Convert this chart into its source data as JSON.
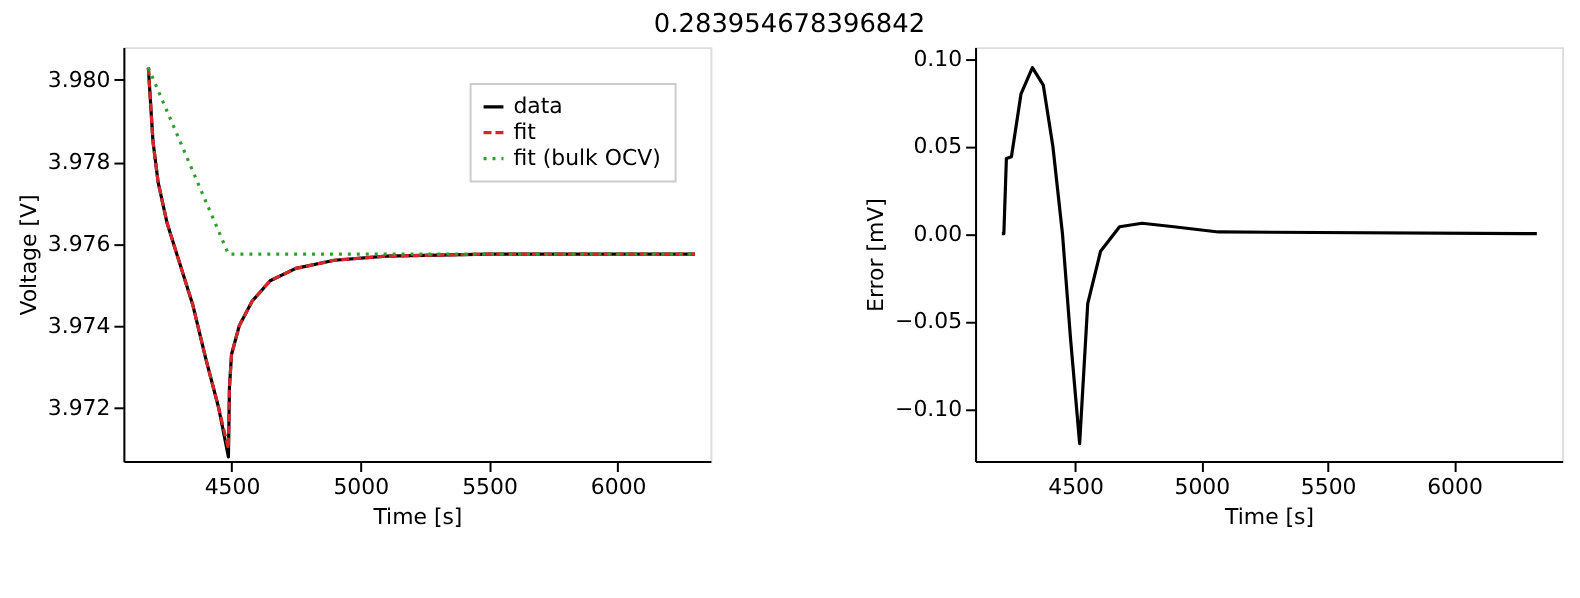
{
  "chart_data": [
    {
      "type": "line",
      "title": "0.283954678396842",
      "xlabel": "Time [s]",
      "ylabel": "Voltage [V]",
      "legend": "top right",
      "grid": false,
      "xlim": [
        4080,
        6360
      ],
      "xticks": [
        4500,
        5000,
        5500,
        6000
      ],
      "ylim": [
        3.9707,
        3.9808
      ],
      "yticks": [
        {
          "value": 3.972,
          "label": "3.972"
        },
        {
          "value": 3.974,
          "label": "3.974"
        },
        {
          "value": 3.976,
          "label": "3.976"
        },
        {
          "value": 3.978,
          "label": "3.978"
        },
        {
          "value": 3.98,
          "label": "3.980"
        }
      ],
      "series": [
        {
          "name": "data",
          "color": "#000000",
          "line_style": "solid",
          "x": [
            4177,
            4195,
            4215,
            4250,
            4300,
            4350,
            4400,
            4450,
            4488,
            4492,
            4500,
            4530,
            4580,
            4650,
            4750,
            4900,
            5100,
            5500,
            6300
          ],
          "values": [
            3.9803,
            3.9785,
            3.9775,
            3.9765,
            3.9755,
            3.9745,
            3.9732,
            3.972,
            3.9708,
            3.9725,
            3.9733,
            3.974,
            3.9746,
            3.9751,
            3.9754,
            3.9756,
            3.9757,
            3.97575,
            3.97575
          ]
        },
        {
          "name": "fit",
          "color": "#d62728",
          "line_style": "dashed",
          "x": [
            4177,
            4195,
            4215,
            4250,
            4300,
            4350,
            4400,
            4450,
            4488,
            4492,
            4500,
            4530,
            4580,
            4650,
            4750,
            4900,
            5100,
            5500,
            6300
          ],
          "values": [
            3.9803,
            3.9785,
            3.9775,
            3.9765,
            3.9755,
            3.9745,
            3.9732,
            3.972,
            3.971,
            3.9725,
            3.9733,
            3.974,
            3.9746,
            3.9751,
            3.9754,
            3.9756,
            3.9757,
            3.97575,
            3.97575
          ]
        },
        {
          "name": "fit (bulk OCV)",
          "color": "#2ca02c",
          "line_style": "dotted",
          "x": [
            4177,
            4488,
            6300
          ],
          "values": [
            3.9803,
            3.97575,
            3.97575
          ]
        }
      ]
    },
    {
      "type": "line",
      "xlabel": "Time [s]",
      "ylabel": "Error [mV]",
      "grid": false,
      "xlim": [
        4104,
        6428
      ],
      "xticks": [
        4500,
        5000,
        5500,
        6000
      ],
      "ylim": [
        -0.13,
        0.1067
      ],
      "yticks": [
        {
          "value": -0.1,
          "label": "−0.10"
        },
        {
          "value": -0.05,
          "label": "−0.05"
        },
        {
          "value": 0,
          "label": "0.00"
        },
        {
          "value": 0.05,
          "label": "0.05"
        },
        {
          "value": 0.1,
          "label": "0.10"
        }
      ],
      "series": [
        {
          "color": "#000000",
          "line_style": "solid",
          "x": [
            4210,
            4218,
            4228,
            4248,
            4286,
            4331,
            4374,
            4412,
            4450,
            4482,
            4518,
            4550,
            4601,
            4676,
            4765,
            4891,
            5067,
            6328
          ],
          "values": [
            0.0,
            0.0,
            0.043,
            0.044,
            0.08,
            0.095,
            0.085,
            0.05,
            0.0,
            -0.06,
            -0.12,
            -0.04,
            -0.01,
            0.004,
            0.006,
            0.004,
            0.001,
            0.0
          ]
        }
      ]
    }
  ]
}
